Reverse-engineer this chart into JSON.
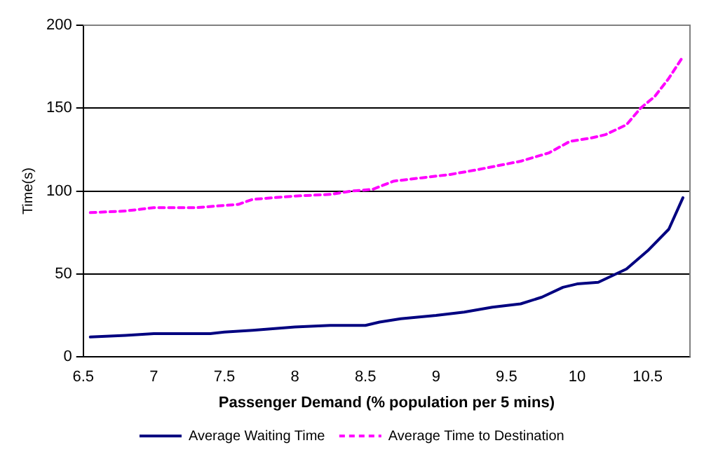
{
  "chart_data": {
    "type": "line",
    "xlabel": "Passenger Demand (% population per 5 mins)",
    "ylabel": "Time(s)",
    "xlim": [
      6.5,
      10.8
    ],
    "xticks": [
      6.5,
      7,
      7.5,
      8,
      8.5,
      9,
      9.5,
      10,
      10.5
    ],
    "ylim": [
      0,
      200
    ],
    "yticks": [
      0,
      50,
      100,
      150,
      200
    ],
    "grid": "y",
    "legend": "bottom",
    "marker": "none",
    "series": [
      {
        "name": "Average Waiting Time",
        "color": "#000080",
        "line_style": "solid",
        "x": [
          6.55,
          6.8,
          7.0,
          7.4,
          7.5,
          7.7,
          8.0,
          8.25,
          8.5,
          8.6,
          8.75,
          9.0,
          9.2,
          9.4,
          9.6,
          9.75,
          9.9,
          10.0,
          10.15,
          10.3,
          10.35,
          10.5,
          10.65,
          10.75
        ],
        "values": [
          12,
          13,
          14,
          14,
          15,
          16,
          18,
          19,
          19,
          21,
          23,
          25,
          27,
          30,
          32,
          36,
          42,
          44,
          45,
          51,
          53,
          64,
          77,
          96
        ]
      },
      {
        "name": "Average Time to Destination",
        "color": "#ff00ff",
        "line_style": "dashed",
        "x": [
          6.55,
          6.8,
          7.0,
          7.3,
          7.6,
          7.7,
          8.0,
          8.25,
          8.4,
          8.55,
          8.7,
          8.9,
          9.1,
          9.3,
          9.6,
          9.8,
          9.95,
          10.1,
          10.2,
          10.35,
          10.45,
          10.55,
          10.65,
          10.75
        ],
        "values": [
          87,
          88,
          90,
          90,
          92,
          95,
          97,
          98,
          100,
          101,
          106,
          108,
          110,
          113,
          118,
          123,
          130,
          132,
          134,
          140,
          150,
          157,
          168,
          181
        ]
      }
    ]
  }
}
